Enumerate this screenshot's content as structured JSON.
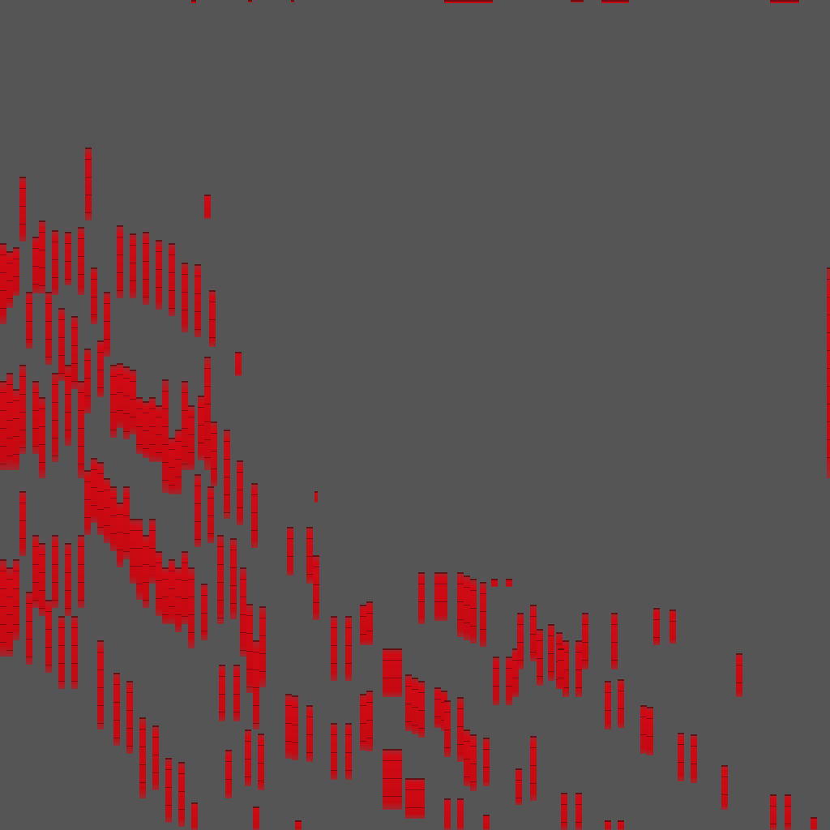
{
  "scene": {
    "description_visible_text": "",
    "background_color": "#555555",
    "mark_color": "#d10a14",
    "mark_shadow_color": "#4a0a0c",
    "mark_shape": "vertical-red-bar"
  }
}
